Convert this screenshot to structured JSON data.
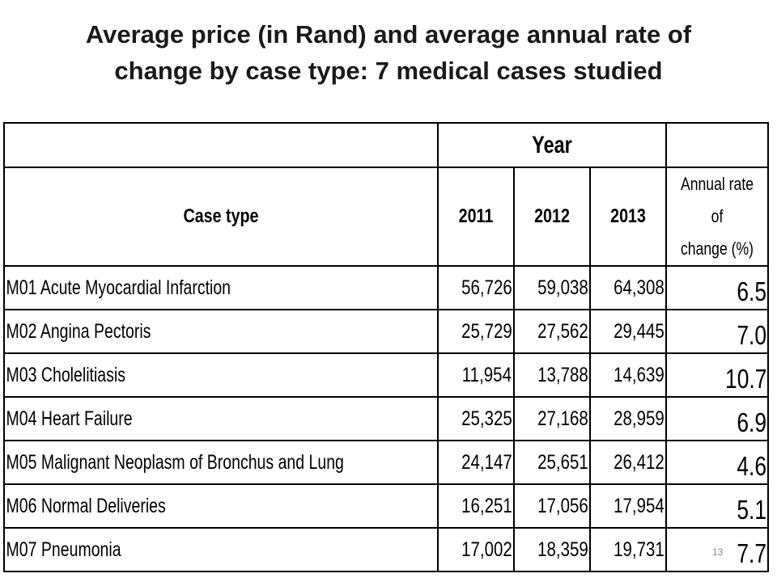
{
  "title": {
    "line1": "Average price (in Rand) and average annual rate of",
    "line2": "change by case type: 7 medical cases studied"
  },
  "table": {
    "group_header": "Year",
    "headers": {
      "case_type": "Case type",
      "y2011": "2011",
      "y2012": "2012",
      "y2013": "2013",
      "rate_line1": "Annual rate of",
      "rate_line2": "change (%)"
    },
    "rows": [
      {
        "case": "M01 Acute Myocardial Infarction",
        "y2011": "56,726",
        "y2012": "59,038",
        "y2013": "64,308",
        "rate": "6.5"
      },
      {
        "case": "M02 Angina Pectoris",
        "y2011": "25,729",
        "y2012": "27,562",
        "y2013": "29,445",
        "rate": "7.0"
      },
      {
        "case": "M03 Cholelitiasis",
        "y2011": "11,954",
        "y2012": "13,788",
        "y2013": "14,639",
        "rate": "10.7"
      },
      {
        "case": "M04 Heart Failure",
        "y2011": "25,325",
        "y2012": "27,168",
        "y2013": "28,959",
        "rate": "6.9"
      },
      {
        "case": "M05 Malignant Neoplasm of Bronchus and Lung",
        "y2011": "24,147",
        "y2012": "25,651",
        "y2013": "26,412",
        "rate": "4.6"
      },
      {
        "case": "M06 Normal Deliveries",
        "y2011": "16,251",
        "y2012": "17,056",
        "y2013": "17,954",
        "rate": "5.1"
      },
      {
        "case": "M07 Pneumonia",
        "y2011": "17,002",
        "y2012": "18,359",
        "y2013": "19,731",
        "rate": "7.7"
      }
    ]
  },
  "page_number": "13"
}
